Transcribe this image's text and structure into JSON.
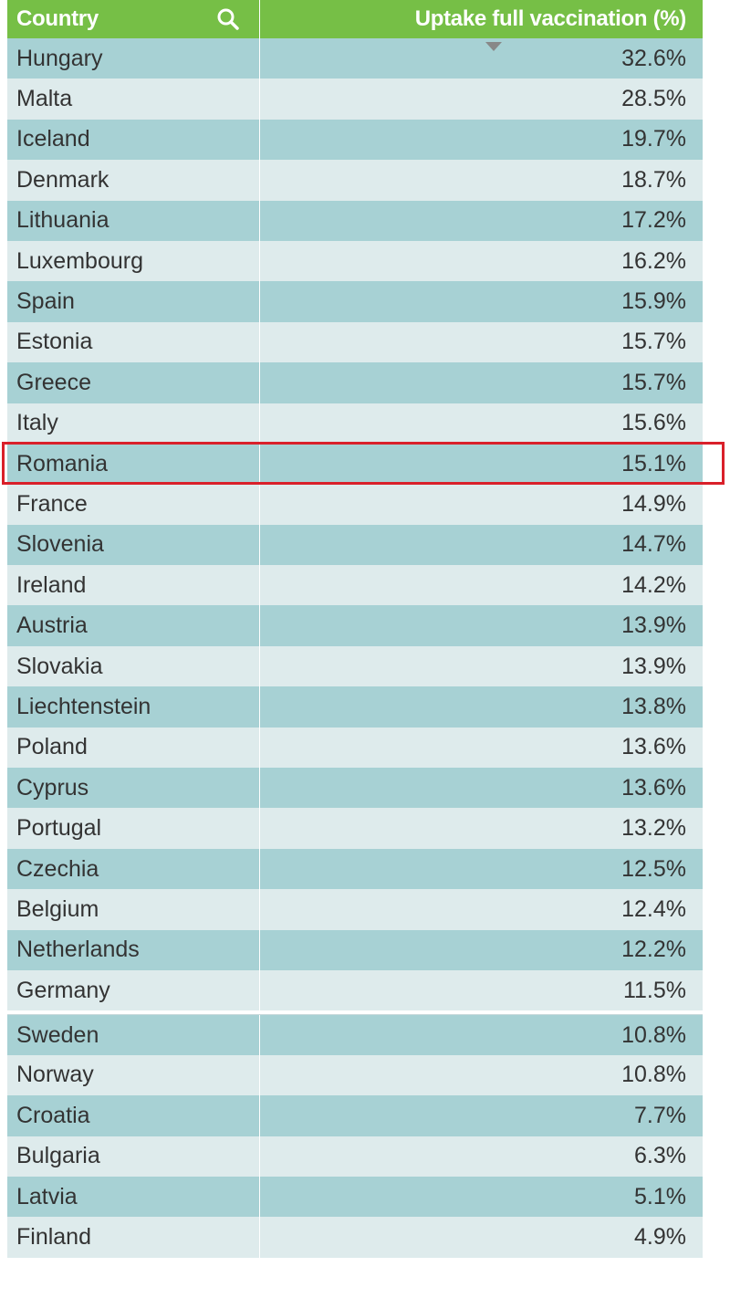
{
  "table": {
    "header": {
      "country": "Country",
      "value": "Uptake full vaccination (%)"
    },
    "header_color": "#76bf46",
    "row_colors": [
      "#a7d1d4",
      "#deebec"
    ],
    "highlight_color": "#d9202a",
    "sort_column": "Uptake full vaccination (%)",
    "sort_direction": "descending",
    "highlighted_country": "Romania",
    "rows": [
      {
        "country": "Hungary",
        "value": "32.6%"
      },
      {
        "country": "Malta",
        "value": "28.5%"
      },
      {
        "country": "Iceland",
        "value": "19.7%"
      },
      {
        "country": "Denmark",
        "value": "18.7%"
      },
      {
        "country": "Lithuania",
        "value": "17.2%"
      },
      {
        "country": "Luxembourg",
        "value": "16.2%"
      },
      {
        "country": "Spain",
        "value": "15.9%"
      },
      {
        "country": "Estonia",
        "value": "15.7%"
      },
      {
        "country": "Greece",
        "value": "15.7%"
      },
      {
        "country": "Italy",
        "value": "15.6%"
      },
      {
        "country": "Romania",
        "value": "15.1%"
      },
      {
        "country": "France",
        "value": "14.9%"
      },
      {
        "country": "Slovenia",
        "value": "14.7%"
      },
      {
        "country": "Ireland",
        "value": "14.2%"
      },
      {
        "country": "Austria",
        "value": "13.9%"
      },
      {
        "country": "Slovakia",
        "value": "13.9%"
      },
      {
        "country": "Liechtenstein",
        "value": "13.8%"
      },
      {
        "country": "Poland",
        "value": "13.6%"
      },
      {
        "country": "Cyprus",
        "value": "13.6%"
      },
      {
        "country": "Portugal",
        "value": "13.2%"
      },
      {
        "country": "Czechia",
        "value": "12.5%"
      },
      {
        "country": "Belgium",
        "value": "12.4%"
      },
      {
        "country": "Netherlands",
        "value": "12.2%"
      },
      {
        "country": "Germany",
        "value": "11.5%"
      },
      {
        "country": "Sweden",
        "value": "10.8%"
      },
      {
        "country": "Norway",
        "value": "10.8%"
      },
      {
        "country": "Croatia",
        "value": "7.7%"
      },
      {
        "country": "Bulgaria",
        "value": "6.3%"
      },
      {
        "country": "Latvia",
        "value": "5.1%"
      },
      {
        "country": "Finland",
        "value": "4.9%"
      }
    ]
  },
  "icons": {
    "search": "search-icon",
    "sort": "sort-descending-icon"
  }
}
